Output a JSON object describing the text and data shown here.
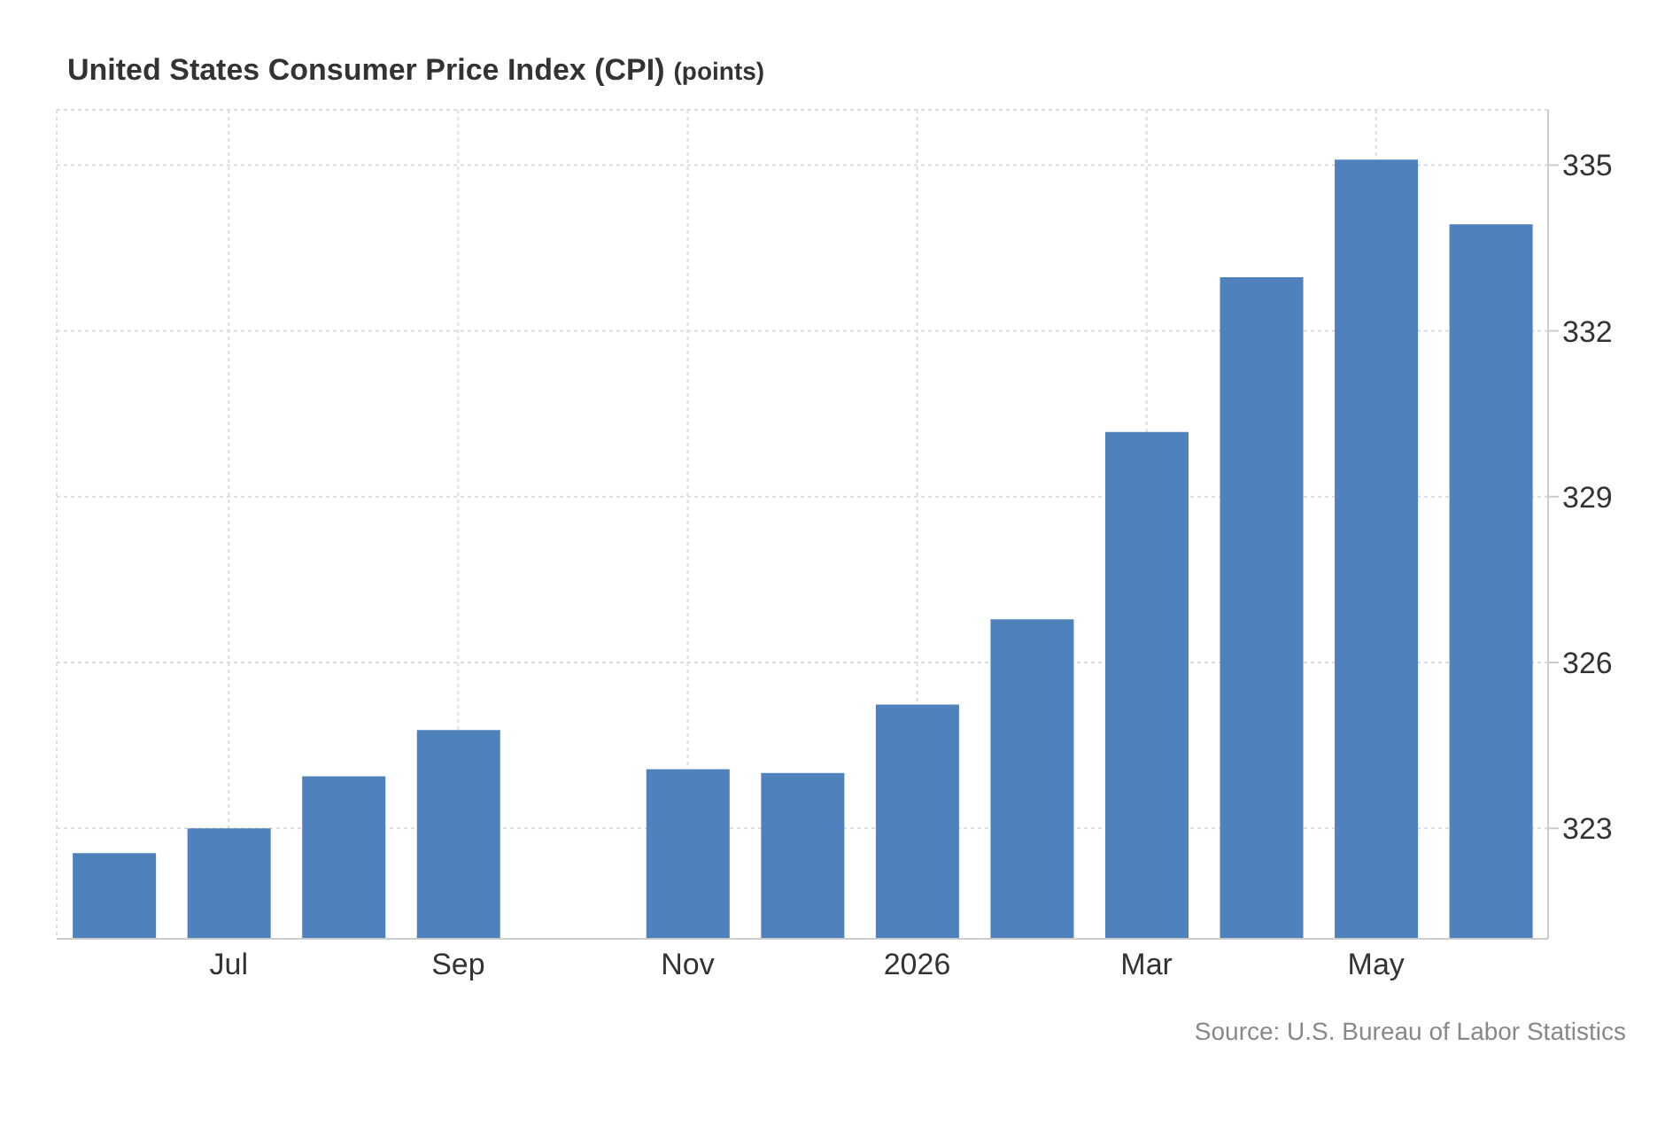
{
  "chart_data": {
    "type": "bar",
    "title": "United States Consumer Price Index (CPI)",
    "subtitle": "(points)",
    "categories": [
      null,
      "Jul",
      null,
      "Sep",
      null,
      "Nov",
      null,
      "2026",
      null,
      "Mar",
      null,
      "May",
      null
    ],
    "values": [
      322.55,
      323.0,
      323.94,
      324.78,
      null,
      324.07,
      324.0,
      325.24,
      326.78,
      330.17,
      332.97,
      335.1,
      333.93
    ],
    "color": "#4f81bd",
    "ylim": [
      321,
      336
    ],
    "yticks": [
      323,
      326,
      329,
      332,
      335
    ],
    "grid": true,
    "annotations": [
      "Source: U.S. Bureau of Labor Statistics"
    ]
  }
}
